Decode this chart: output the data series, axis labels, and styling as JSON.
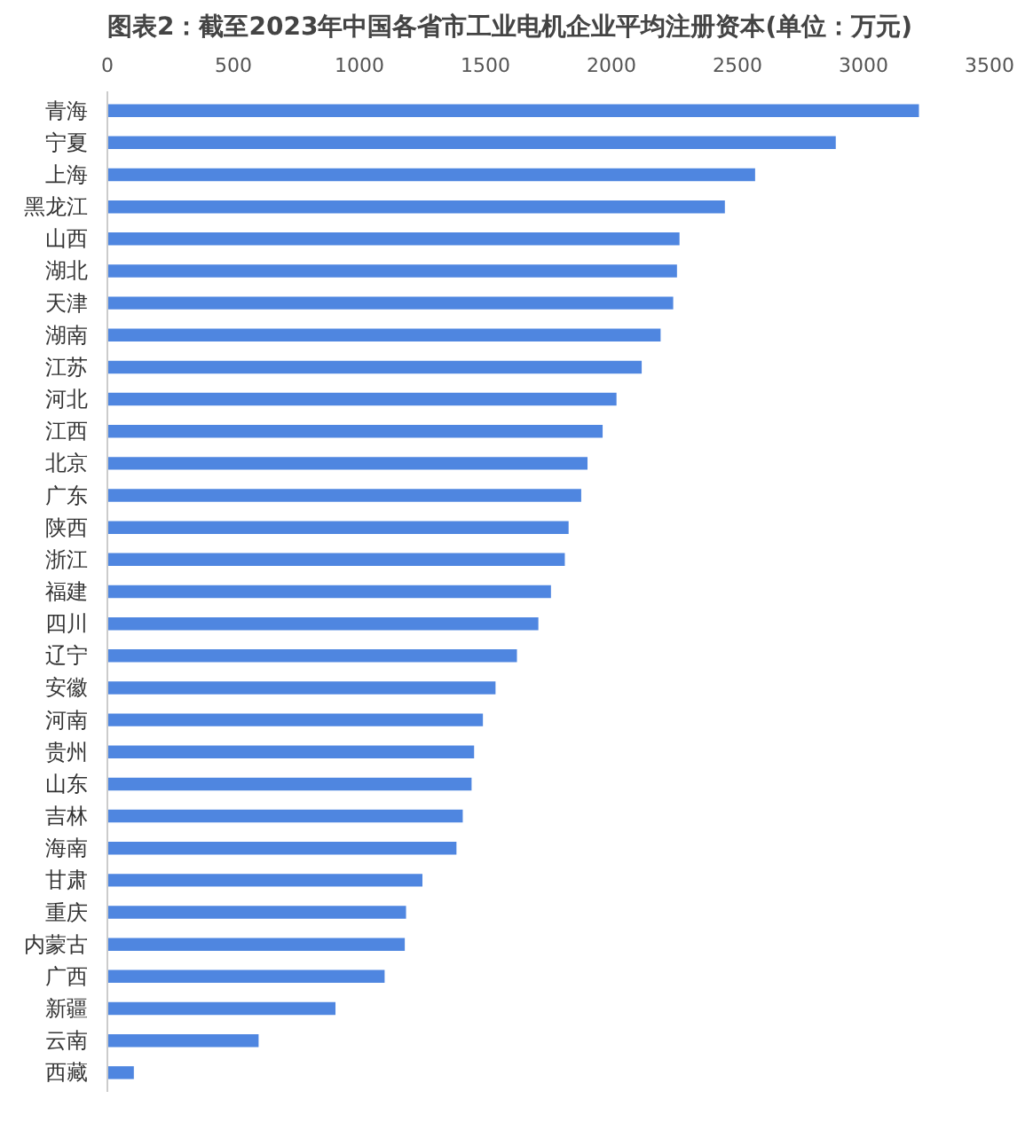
{
  "chart_data": {
    "type": "bar",
    "orientation": "horizontal",
    "title": "图表2：截至2023年中国各省市工业电机企业平均注册资本(单位：万元)",
    "categories": [
      "青海",
      "宁夏",
      "上海",
      "黑龙江",
      "山西",
      "湖北",
      "天津",
      "湖南",
      "江苏",
      "河北",
      "江西",
      "北京",
      "广东",
      "陕西",
      "浙江",
      "福建",
      "四川",
      "辽宁",
      "安徽",
      "河南",
      "贵州",
      "山东",
      "吉林",
      "海南",
      "甘肃",
      "重庆",
      "内蒙古",
      "广西",
      "新疆",
      "云南",
      "西藏"
    ],
    "values": [
      3220,
      2890,
      2570,
      2450,
      2270,
      2260,
      2245,
      2195,
      2120,
      2020,
      1965,
      1905,
      1880,
      1830,
      1815,
      1760,
      1710,
      1625,
      1540,
      1490,
      1455,
      1445,
      1410,
      1385,
      1250,
      1185,
      1180,
      1100,
      905,
      600,
      105
    ],
    "color": "#4f86e0",
    "xlim": [
      0,
      3500
    ],
    "xticks": [
      0,
      500,
      1000,
      1500,
      2000,
      2500,
      3000,
      3500
    ],
    "grid": false
  }
}
